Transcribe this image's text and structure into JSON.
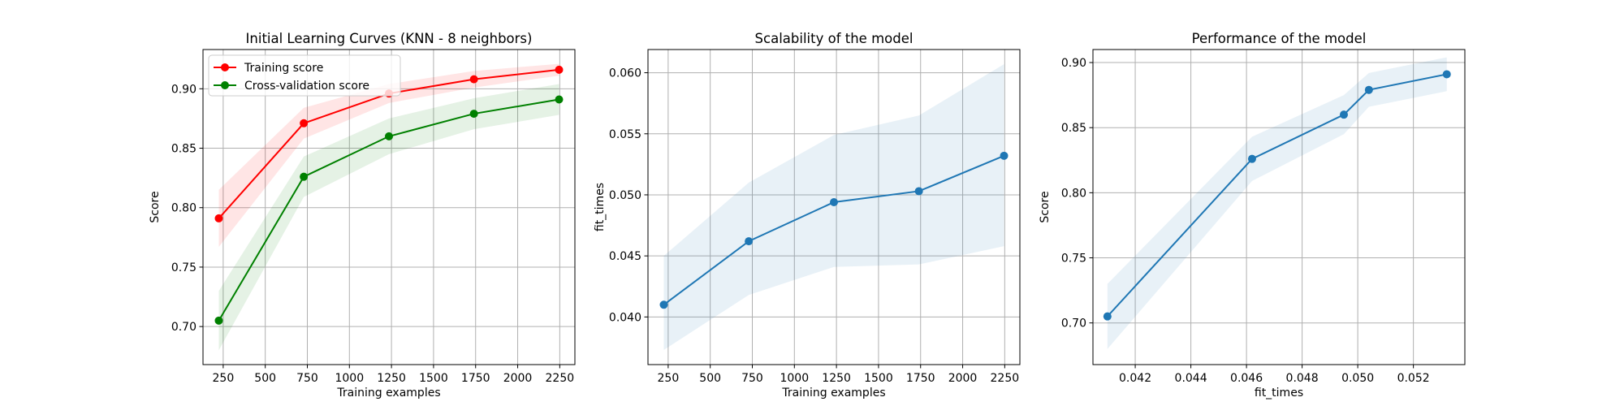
{
  "chart_data": [
    {
      "type": "line",
      "title": "Initial Learning Curves (KNN - 8 neighbors)",
      "xlabel": "Training examples",
      "ylabel": "Score",
      "xlim": [
        130,
        2340
      ],
      "ylim": [
        0.668,
        0.933
      ],
      "xticks": [
        250,
        500,
        750,
        1000,
        1250,
        1500,
        1750,
        2000,
        2250
      ],
      "xtick_labels": [
        "250",
        "500",
        "750",
        "1000",
        "1250",
        "1500",
        "1750",
        "2000",
        "2250"
      ],
      "yticks": [
        0.7,
        0.75,
        0.8,
        0.85,
        0.9
      ],
      "ytick_labels": [
        "0.70",
        "0.75",
        "0.80",
        "0.85",
        "0.90"
      ],
      "grid": true,
      "legend_position": "upper-left",
      "x": [
        224,
        729,
        1235,
        1740,
        2246
      ],
      "series": [
        {
          "name": "Training score",
          "color": "#ff0000",
          "values": [
            0.791,
            0.871,
            0.896,
            0.908,
            0.916
          ],
          "band_lower": [
            0.767,
            0.858,
            0.888,
            0.901,
            0.911
          ],
          "band_upper": [
            0.815,
            0.884,
            0.904,
            0.915,
            0.921
          ]
        },
        {
          "name": "Cross-validation score",
          "color": "#008000",
          "values": [
            0.705,
            0.826,
            0.86,
            0.879,
            0.891
          ],
          "band_lower": [
            0.68,
            0.809,
            0.845,
            0.866,
            0.878
          ],
          "band_upper": [
            0.73,
            0.843,
            0.875,
            0.892,
            0.904
          ]
        }
      ]
    },
    {
      "type": "line",
      "title": "Scalability of the model",
      "xlabel": "Training examples",
      "ylabel": "fit_times",
      "xlim": [
        130,
        2340
      ],
      "ylim": [
        0.0361,
        0.0619
      ],
      "xticks": [
        250,
        500,
        750,
        1000,
        1250,
        1500,
        1750,
        2000,
        2250
      ],
      "xtick_labels": [
        "250",
        "500",
        "750",
        "1000",
        "1250",
        "1500",
        "1750",
        "2000",
        "2250"
      ],
      "yticks": [
        0.04,
        0.045,
        0.05,
        0.055,
        0.06
      ],
      "ytick_labels": [
        "0.040",
        "0.045",
        "0.050",
        "0.055",
        "0.060"
      ],
      "grid": true,
      "x": [
        224,
        729,
        1235,
        1740,
        2246
      ],
      "series": [
        {
          "color": "#1f77b4",
          "values": [
            0.041,
            0.0462,
            0.0494,
            0.0503,
            0.0532
          ],
          "band_lower": [
            0.0373,
            0.0418,
            0.0441,
            0.0443,
            0.0458
          ],
          "band_upper": [
            0.045,
            0.051,
            0.0549,
            0.0565,
            0.0607
          ]
        }
      ]
    },
    {
      "type": "line",
      "title": "Performance of the model",
      "xlabel": "fit_times",
      "ylabel": "Score",
      "xlim": [
        0.04048,
        0.05385
      ],
      "ylim": [
        0.668,
        0.91
      ],
      "xticks": [
        0.042,
        0.044,
        0.046,
        0.048,
        0.05,
        0.052
      ],
      "xtick_labels": [
        "0.042",
        "0.044",
        "0.046",
        "0.048",
        "0.050",
        "0.052"
      ],
      "yticks": [
        0.7,
        0.75,
        0.8,
        0.85,
        0.9
      ],
      "ytick_labels": [
        "0.70",
        "0.75",
        "0.80",
        "0.85",
        "0.90"
      ],
      "grid": true,
      "x": [
        0.041,
        0.0462,
        0.0495,
        0.0504,
        0.0532
      ],
      "series": [
        {
          "color": "#1f77b4",
          "values": [
            0.705,
            0.826,
            0.86,
            0.879,
            0.891
          ],
          "band_lower": [
            0.68,
            0.809,
            0.845,
            0.866,
            0.878
          ],
          "band_upper": [
            0.73,
            0.843,
            0.875,
            0.892,
            0.904
          ]
        }
      ]
    }
  ]
}
